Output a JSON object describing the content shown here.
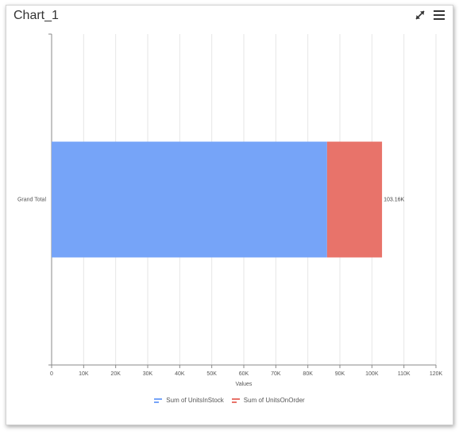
{
  "header": {
    "title": "Chart_1",
    "expand_icon": "expand-icon",
    "menu_icon": "hamburger-menu-icon"
  },
  "colors": {
    "stock": "#76a4f8",
    "order": "#e8736a",
    "grid": "#e6e6e6",
    "axis": "#888888"
  },
  "chart_data": {
    "type": "bar",
    "orientation": "horizontal",
    "stacked": true,
    "categories": [
      "Grand Total"
    ],
    "series": [
      {
        "name": "Sum of UnitsInStock",
        "values": [
          86000
        ],
        "color": "#76a4f8"
      },
      {
        "name": "Sum of UnitsOnOrder",
        "values": [
          17160
        ],
        "color": "#e8736a"
      }
    ],
    "data_labels": [
      "103.16K"
    ],
    "xlabel": "Values",
    "ylabel": "",
    "xlim": [
      0,
      120000
    ],
    "xticks": [
      "0",
      "10K",
      "20K",
      "30K",
      "40K",
      "50K",
      "60K",
      "70K",
      "80K",
      "90K",
      "100K",
      "110K",
      "120K"
    ],
    "grid": true,
    "legend_position": "bottom"
  }
}
